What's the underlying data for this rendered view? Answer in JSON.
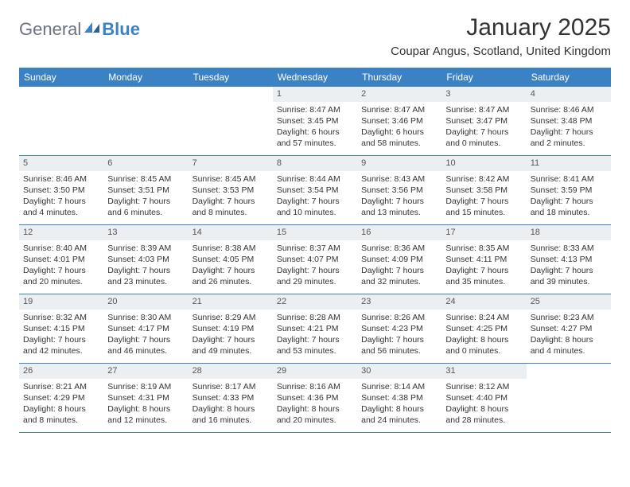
{
  "logo": {
    "text1": "General",
    "text2": "Blue"
  },
  "title": "January 2025",
  "location": "Coupar Angus, Scotland, United Kingdom",
  "colors": {
    "brand_blue": "#3b82c4",
    "header_gray": "#eceff1",
    "text": "#333333",
    "logo_gray": "#6b7280",
    "bg": "#ffffff"
  },
  "day_names": [
    "Sunday",
    "Monday",
    "Tuesday",
    "Wednesday",
    "Thursday",
    "Friday",
    "Saturday"
  ],
  "weeks": [
    [
      null,
      null,
      null,
      {
        "n": "1",
        "sr": "Sunrise: 8:47 AM",
        "ss": "Sunset: 3:45 PM",
        "dl": "Daylight: 6 hours and 57 minutes."
      },
      {
        "n": "2",
        "sr": "Sunrise: 8:47 AM",
        "ss": "Sunset: 3:46 PM",
        "dl": "Daylight: 6 hours and 58 minutes."
      },
      {
        "n": "3",
        "sr": "Sunrise: 8:47 AM",
        "ss": "Sunset: 3:47 PM",
        "dl": "Daylight: 7 hours and 0 minutes."
      },
      {
        "n": "4",
        "sr": "Sunrise: 8:46 AM",
        "ss": "Sunset: 3:48 PM",
        "dl": "Daylight: 7 hours and 2 minutes."
      }
    ],
    [
      {
        "n": "5",
        "sr": "Sunrise: 8:46 AM",
        "ss": "Sunset: 3:50 PM",
        "dl": "Daylight: 7 hours and 4 minutes."
      },
      {
        "n": "6",
        "sr": "Sunrise: 8:45 AM",
        "ss": "Sunset: 3:51 PM",
        "dl": "Daylight: 7 hours and 6 minutes."
      },
      {
        "n": "7",
        "sr": "Sunrise: 8:45 AM",
        "ss": "Sunset: 3:53 PM",
        "dl": "Daylight: 7 hours and 8 minutes."
      },
      {
        "n": "8",
        "sr": "Sunrise: 8:44 AM",
        "ss": "Sunset: 3:54 PM",
        "dl": "Daylight: 7 hours and 10 minutes."
      },
      {
        "n": "9",
        "sr": "Sunrise: 8:43 AM",
        "ss": "Sunset: 3:56 PM",
        "dl": "Daylight: 7 hours and 13 minutes."
      },
      {
        "n": "10",
        "sr": "Sunrise: 8:42 AM",
        "ss": "Sunset: 3:58 PM",
        "dl": "Daylight: 7 hours and 15 minutes."
      },
      {
        "n": "11",
        "sr": "Sunrise: 8:41 AM",
        "ss": "Sunset: 3:59 PM",
        "dl": "Daylight: 7 hours and 18 minutes."
      }
    ],
    [
      {
        "n": "12",
        "sr": "Sunrise: 8:40 AM",
        "ss": "Sunset: 4:01 PM",
        "dl": "Daylight: 7 hours and 20 minutes."
      },
      {
        "n": "13",
        "sr": "Sunrise: 8:39 AM",
        "ss": "Sunset: 4:03 PM",
        "dl": "Daylight: 7 hours and 23 minutes."
      },
      {
        "n": "14",
        "sr": "Sunrise: 8:38 AM",
        "ss": "Sunset: 4:05 PM",
        "dl": "Daylight: 7 hours and 26 minutes."
      },
      {
        "n": "15",
        "sr": "Sunrise: 8:37 AM",
        "ss": "Sunset: 4:07 PM",
        "dl": "Daylight: 7 hours and 29 minutes."
      },
      {
        "n": "16",
        "sr": "Sunrise: 8:36 AM",
        "ss": "Sunset: 4:09 PM",
        "dl": "Daylight: 7 hours and 32 minutes."
      },
      {
        "n": "17",
        "sr": "Sunrise: 8:35 AM",
        "ss": "Sunset: 4:11 PM",
        "dl": "Daylight: 7 hours and 35 minutes."
      },
      {
        "n": "18",
        "sr": "Sunrise: 8:33 AM",
        "ss": "Sunset: 4:13 PM",
        "dl": "Daylight: 7 hours and 39 minutes."
      }
    ],
    [
      {
        "n": "19",
        "sr": "Sunrise: 8:32 AM",
        "ss": "Sunset: 4:15 PM",
        "dl": "Daylight: 7 hours and 42 minutes."
      },
      {
        "n": "20",
        "sr": "Sunrise: 8:30 AM",
        "ss": "Sunset: 4:17 PM",
        "dl": "Daylight: 7 hours and 46 minutes."
      },
      {
        "n": "21",
        "sr": "Sunrise: 8:29 AM",
        "ss": "Sunset: 4:19 PM",
        "dl": "Daylight: 7 hours and 49 minutes."
      },
      {
        "n": "22",
        "sr": "Sunrise: 8:28 AM",
        "ss": "Sunset: 4:21 PM",
        "dl": "Daylight: 7 hours and 53 minutes."
      },
      {
        "n": "23",
        "sr": "Sunrise: 8:26 AM",
        "ss": "Sunset: 4:23 PM",
        "dl": "Daylight: 7 hours and 56 minutes."
      },
      {
        "n": "24",
        "sr": "Sunrise: 8:24 AM",
        "ss": "Sunset: 4:25 PM",
        "dl": "Daylight: 8 hours and 0 minutes."
      },
      {
        "n": "25",
        "sr": "Sunrise: 8:23 AM",
        "ss": "Sunset: 4:27 PM",
        "dl": "Daylight: 8 hours and 4 minutes."
      }
    ],
    [
      {
        "n": "26",
        "sr": "Sunrise: 8:21 AM",
        "ss": "Sunset: 4:29 PM",
        "dl": "Daylight: 8 hours and 8 minutes."
      },
      {
        "n": "27",
        "sr": "Sunrise: 8:19 AM",
        "ss": "Sunset: 4:31 PM",
        "dl": "Daylight: 8 hours and 12 minutes."
      },
      {
        "n": "28",
        "sr": "Sunrise: 8:17 AM",
        "ss": "Sunset: 4:33 PM",
        "dl": "Daylight: 8 hours and 16 minutes."
      },
      {
        "n": "29",
        "sr": "Sunrise: 8:16 AM",
        "ss": "Sunset: 4:36 PM",
        "dl": "Daylight: 8 hours and 20 minutes."
      },
      {
        "n": "30",
        "sr": "Sunrise: 8:14 AM",
        "ss": "Sunset: 4:38 PM",
        "dl": "Daylight: 8 hours and 24 minutes."
      },
      {
        "n": "31",
        "sr": "Sunrise: 8:12 AM",
        "ss": "Sunset: 4:40 PM",
        "dl": "Daylight: 8 hours and 28 minutes."
      },
      null
    ]
  ]
}
